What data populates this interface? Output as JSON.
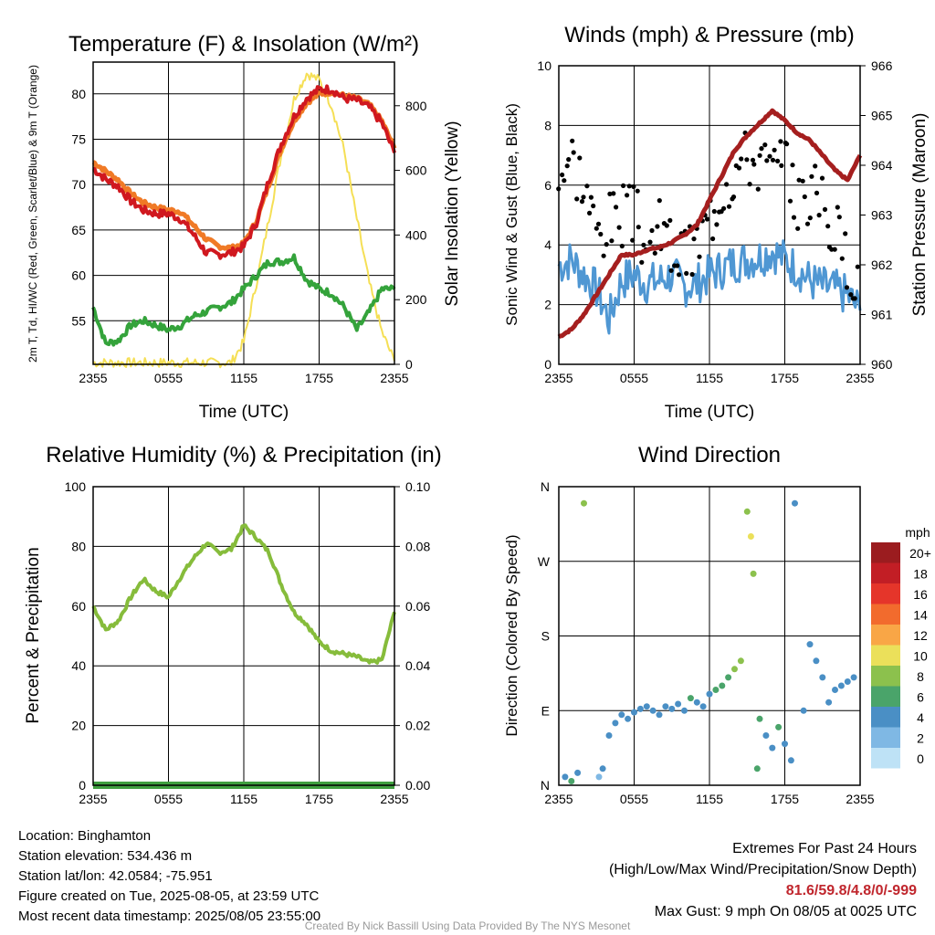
{
  "chart_data": [
    {
      "type": "line",
      "title": "Temperature (F) & Insolation (W/m²)",
      "ylabel": "2m T, Td, HI/WC (Red, Green, Scarlet/Blue) & 9m T (Orange)",
      "y2label": "Solar Insolation (Yellow)",
      "xlabel": "Time (UTC)",
      "x_ticks": [
        "2355",
        "0555",
        "1155",
        "1755",
        "2355"
      ],
      "y_ticks": [
        55,
        60,
        65,
        70,
        75,
        80
      ],
      "y2_ticks": [
        0,
        200,
        400,
        600,
        800
      ],
      "ylim": [
        50.2,
        83.5
      ],
      "y2lim": [
        0,
        935
      ],
      "x_hours": [
        0,
        1,
        2,
        3,
        4,
        5,
        6,
        7,
        8,
        9,
        10,
        11,
        12,
        13,
        14,
        15,
        16,
        17,
        18,
        19,
        20,
        21,
        22,
        23,
        24
      ],
      "series": [
        {
          "key": "t2m",
          "color": "#d0181f",
          "values": [
            71.8,
            70.6,
            69.8,
            68.2,
            67.2,
            66.8,
            66.8,
            66.2,
            64.5,
            62.5,
            62.3,
            62.5,
            63.2,
            65.8,
            70.5,
            74.5,
            77.5,
            79.5,
            80.5,
            80.5,
            79.5,
            79.3,
            78.5,
            76.8,
            73.5
          ]
        },
        {
          "key": "t9m",
          "color": "#f07a26",
          "values": [
            72.5,
            71.5,
            70.5,
            69.0,
            68.0,
            67.5,
            67.2,
            67.0,
            65.5,
            64.0,
            63.2,
            63.0,
            63.5,
            66.0,
            70.0,
            74.0,
            77.0,
            79.0,
            80.0,
            80.2,
            79.8,
            79.5,
            78.8,
            77.0,
            74.0
          ]
        },
        {
          "key": "td",
          "color": "#34a33b",
          "values": [
            56.5,
            52.5,
            52.8,
            54.5,
            55.0,
            54.5,
            54.0,
            54.5,
            55.5,
            56.0,
            56.5,
            57.0,
            58.5,
            60.0,
            61.5,
            61.5,
            62.0,
            59.5,
            58.5,
            58.0,
            56.5,
            54.0,
            56.0,
            58.5,
            58.5
          ]
        },
        {
          "key": "solar",
          "axis": "y2",
          "color": "#f5df55",
          "values": [
            5,
            5,
            5,
            5,
            5,
            5,
            5,
            5,
            5,
            5,
            5,
            5,
            70,
            250,
            450,
            650,
            820,
            900,
            880,
            800,
            660,
            450,
            250,
            100,
            10
          ]
        }
      ]
    },
    {
      "type": "line",
      "title": "Winds (mph) & Pressure (mb)",
      "ylabel": "Sonic Wind & Gust (Blue, Black)",
      "y2label": "Station Pressure (Maroon)",
      "xlabel": "Time (UTC)",
      "x_ticks": [
        "2355",
        "0555",
        "1155",
        "1755",
        "2355"
      ],
      "y_ticks": [
        0,
        2,
        4,
        6,
        8,
        10
      ],
      "y2_ticks": [
        960,
        961,
        962,
        963,
        964,
        965,
        966
      ],
      "ylim": [
        0,
        10
      ],
      "y2lim": [
        960,
        966
      ],
      "x_hours": [
        0,
        1,
        2,
        3,
        4,
        5,
        6,
        7,
        8,
        9,
        10,
        11,
        12,
        13,
        14,
        15,
        16,
        17,
        18,
        19,
        20,
        21,
        22,
        23,
        24
      ],
      "series": [
        {
          "key": "wind",
          "color": "#4f97d3",
          "values": [
            3.3,
            3.5,
            3.0,
            2.5,
            1.5,
            2.8,
            3.0,
            2.7,
            2.8,
            3.0,
            2.6,
            2.7,
            3.0,
            3.2,
            3.4,
            3.5,
            3.6,
            3.8,
            3.5,
            3.2,
            2.8,
            2.6,
            2.5,
            2.3,
            1.8
          ]
        },
        {
          "key": "gust",
          "color": "#000000",
          "values": [
            6.5,
            7.0,
            6.0,
            4.5,
            4.8,
            5.0,
            5.0,
            4.0,
            4.5,
            4.0,
            3.5,
            4.0,
            5.0,
            6.0,
            6.5,
            7.0,
            6.8,
            6.5,
            6.5,
            5.5,
            5.8,
            5.5,
            4.5,
            3.5,
            3.0
          ]
        },
        {
          "key": "pressure",
          "axis": "y2",
          "color": "#a51f1f",
          "values": [
            960.55,
            960.7,
            961.0,
            961.4,
            961.8,
            962.2,
            962.2,
            962.3,
            962.35,
            962.45,
            962.6,
            962.8,
            963.3,
            963.8,
            964.3,
            964.6,
            964.85,
            965.1,
            964.9,
            964.65,
            964.5,
            964.2,
            963.9,
            963.7,
            964.2
          ]
        }
      ]
    },
    {
      "type": "line",
      "title": "Relative Humidity (%) & Precipitation (in)",
      "ylabel": "Percent & Precipitation",
      "xlabel": "",
      "x_ticks": [
        "2355",
        "0555",
        "1155",
        "1755",
        "2355"
      ],
      "y_ticks": [
        0,
        20,
        40,
        60,
        80,
        100
      ],
      "y2_ticks": [
        "0.00",
        "0.02",
        "0.04",
        "0.06",
        "0.08",
        "0.10"
      ],
      "ylim": [
        0,
        100
      ],
      "y2lim": [
        0,
        0.1
      ],
      "x_hours": [
        0,
        1,
        2,
        3,
        4,
        5,
        6,
        7,
        8,
        9,
        10,
        11,
        12,
        13,
        14,
        15,
        16,
        17,
        18,
        19,
        20,
        21,
        22,
        23,
        24
      ],
      "series": [
        {
          "key": "rh",
          "color": "#86bc3b",
          "values": [
            60,
            52,
            55,
            63,
            69,
            65,
            63,
            70,
            76,
            81,
            78,
            79,
            87,
            83,
            78,
            67,
            58,
            54,
            48,
            45,
            44,
            43,
            41,
            42,
            58
          ]
        },
        {
          "key": "precip",
          "axis": "y2",
          "color": "#3f9f3f",
          "values": [
            0,
            0,
            0,
            0,
            0,
            0,
            0,
            0,
            0,
            0,
            0,
            0,
            0,
            0,
            0,
            0,
            0,
            0,
            0,
            0,
            0,
            0,
            0,
            0,
            0
          ]
        }
      ]
    },
    {
      "type": "scatter",
      "title": "Wind Direction",
      "ylabel": "Direction (Colored By Speed)",
      "x_ticks": [
        "2355",
        "0555",
        "1155",
        "1755",
        "2355"
      ],
      "y_ticks": [
        "N",
        "E",
        "S",
        "W",
        "N"
      ],
      "ylim": [
        0,
        360
      ],
      "points": [
        [
          0.5,
          10,
          2
        ],
        [
          1.0,
          5,
          3
        ],
        [
          1.5,
          15,
          2
        ],
        [
          2.0,
          340,
          4
        ],
        [
          3.2,
          10,
          1
        ],
        [
          3.5,
          20,
          2
        ],
        [
          4.0,
          60,
          2
        ],
        [
          4.5,
          75,
          2
        ],
        [
          5.0,
          85,
          2
        ],
        [
          5.5,
          80,
          2
        ],
        [
          6.0,
          88,
          2
        ],
        [
          6.5,
          92,
          2
        ],
        [
          7.0,
          95,
          2
        ],
        [
          7.5,
          90,
          2
        ],
        [
          8.0,
          85,
          2
        ],
        [
          8.5,
          95,
          2
        ],
        [
          9.0,
          92,
          2
        ],
        [
          9.5,
          98,
          2
        ],
        [
          10.0,
          90,
          2
        ],
        [
          10.5,
          105,
          3
        ],
        [
          11.0,
          100,
          2
        ],
        [
          11.5,
          95,
          2
        ],
        [
          12.0,
          110,
          2
        ],
        [
          12.5,
          115,
          3
        ],
        [
          13.0,
          120,
          3
        ],
        [
          13.5,
          130,
          3
        ],
        [
          14.0,
          140,
          4
        ],
        [
          14.5,
          150,
          4
        ],
        [
          15.0,
          330,
          4
        ],
        [
          15.3,
          300,
          5
        ],
        [
          15.5,
          255,
          4
        ],
        [
          15.8,
          20,
          3
        ],
        [
          16.0,
          80,
          3
        ],
        [
          16.5,
          60,
          2
        ],
        [
          17.0,
          45,
          2
        ],
        [
          17.5,
          70,
          3
        ],
        [
          18.0,
          50,
          2
        ],
        [
          18.5,
          30,
          2
        ],
        [
          18.8,
          340,
          2
        ],
        [
          19.5,
          90,
          2
        ],
        [
          20.0,
          170,
          2
        ],
        [
          20.5,
          150,
          2
        ],
        [
          21.0,
          130,
          2
        ],
        [
          21.5,
          100,
          2
        ],
        [
          22.0,
          115,
          2
        ],
        [
          22.5,
          120,
          2
        ],
        [
          23.0,
          125,
          2
        ],
        [
          23.5,
          130,
          2
        ]
      ]
    }
  ],
  "legend": {
    "unit": "mph",
    "labels": [
      "20+",
      "18",
      "16",
      "14",
      "12",
      "10",
      "8",
      "6",
      "4",
      "2",
      "0"
    ],
    "colors": [
      "#9b1c1f",
      "#c21e25",
      "#e5352a",
      "#f26b2d",
      "#f9a646",
      "#ebe05a",
      "#8cc14d",
      "#4aa46a",
      "#4a8fc5",
      "#7fb8e4",
      "#bee2f6"
    ]
  },
  "info": {
    "location": "Location: Binghamton",
    "elevation": "Station elevation: 534.436 m",
    "latlon": "Station lat/lon: 42.0584; -75.951",
    "created": "Figure created on Tue, 2025-08-05, at 23:59 UTC",
    "recent": "Most recent data timestamp: 2025/08/05 23:55:00"
  },
  "extremes": {
    "title": "Extremes For Past 24 Hours",
    "subtitle": "(High/Low/Max Wind/Precipitation/Snow Depth)",
    "values": "81.6/59.8/4.8/0/-999",
    "gust": "Max Gust: 9 mph On 08/05 at 0025 UTC"
  },
  "credit": "Created By Nick Bassill Using Data Provided By The NYS Mesonet"
}
